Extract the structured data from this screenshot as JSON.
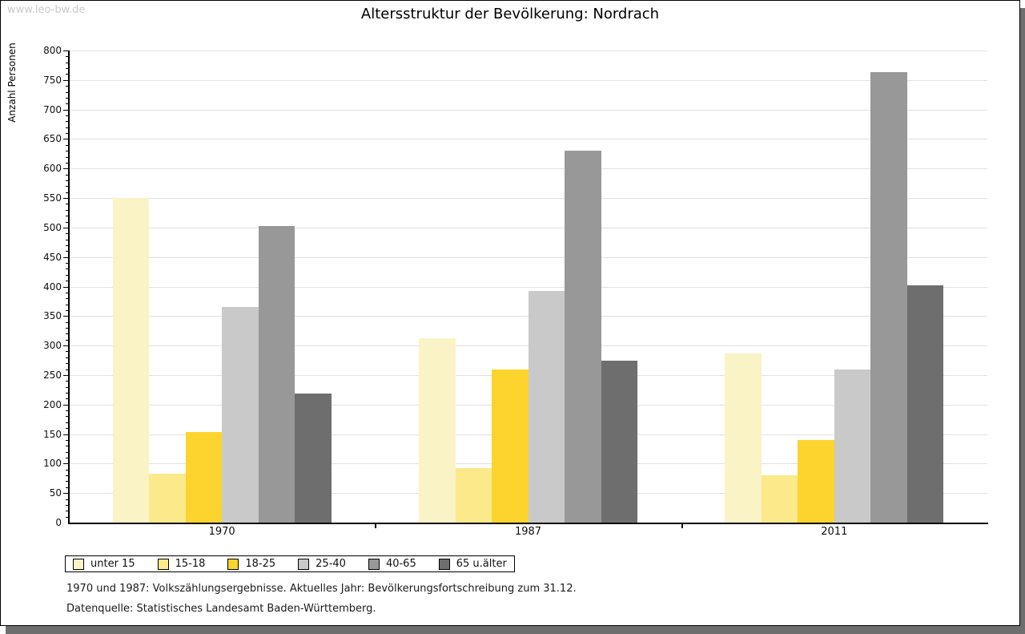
{
  "watermark": "www.leo-bw.de",
  "title": "Altersstruktur der Bevölkerung: Nordrach",
  "footnotes": {
    "line1": "1970 und 1987: Volkszählungsergebnisse. Aktuelles Jahr: Bevölkerungsfortschreibung zum 31.12.",
    "line2": "Datenquelle: Statistisches Landesamt Baden-Württemberg."
  },
  "chart_data": {
    "type": "bar",
    "title": "Altersstruktur der Bevölkerung: Nordrach",
    "xlabel": "",
    "ylabel": "Anzahl Personen",
    "categories": [
      "1970",
      "1987",
      "2011"
    ],
    "series": [
      {
        "name": "unter 15",
        "color": "#FAF3C6",
        "values": [
          550,
          312,
          287
        ]
      },
      {
        "name": "15-18",
        "color": "#FCE98A",
        "values": [
          83,
          93,
          80
        ]
      },
      {
        "name": "18-25",
        "color": "#FCD42D",
        "values": [
          154,
          260,
          140
        ]
      },
      {
        "name": "25-40",
        "color": "#C9C9C9",
        "values": [
          365,
          393,
          259
        ]
      },
      {
        "name": "40-65",
        "color": "#989898",
        "values": [
          502,
          630,
          763
        ]
      },
      {
        "name": "65 u.älter",
        "color": "#6E6E6E",
        "values": [
          218,
          275,
          402
        ]
      }
    ],
    "ylim": [
      0,
      800
    ],
    "y_major_step": 50,
    "y_minor_step": 10,
    "grid": true,
    "legend_position": "bottom-left",
    "colors": {
      "gridline": "#E0E0E0",
      "axis": "#000000",
      "frame_shadow": "#6E6E6E",
      "watermark_text": "#C9C9C9"
    }
  }
}
